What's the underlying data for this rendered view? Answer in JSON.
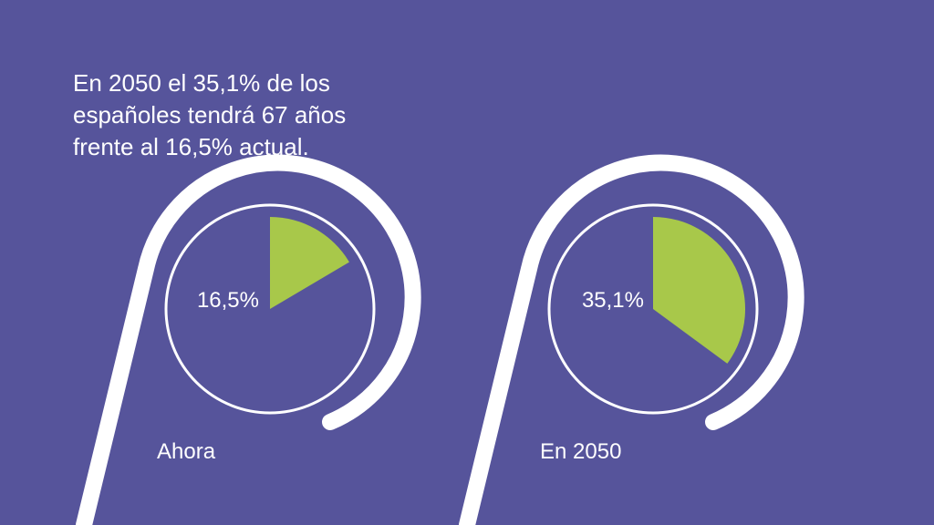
{
  "headline": {
    "line1": "En 2050 el 35,1% de los",
    "line2": "españoles tendrá 67 años",
    "line3": "frente al 16,5% actual."
  },
  "colors": {
    "background": "#56549b",
    "slice": "#a8c84a",
    "stroke": "#ffffff"
  },
  "chart_data": [
    {
      "type": "pie",
      "caption": "Ahora",
      "label": "16,5%",
      "value": 16.5,
      "max": 100
    },
    {
      "type": "pie",
      "caption": "En 2050",
      "label": "35,1%",
      "value": 35.1,
      "max": 100
    }
  ]
}
